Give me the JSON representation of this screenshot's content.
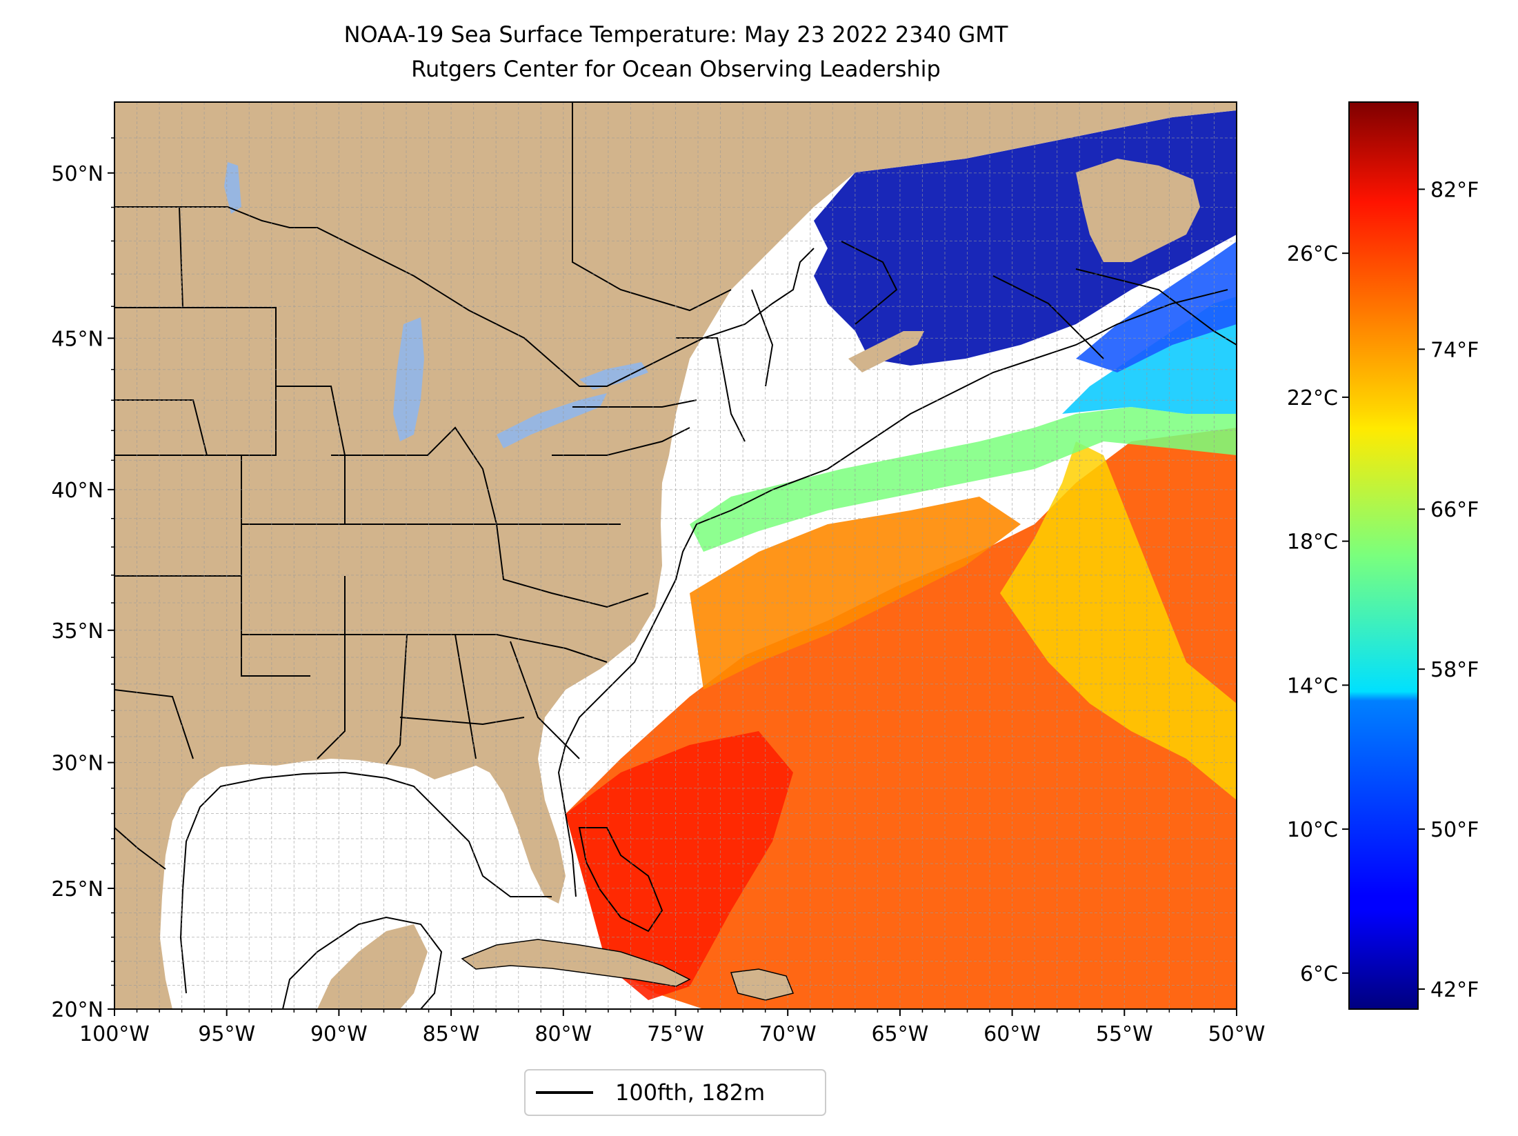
{
  "title": {
    "line1": "NOAA-19 Sea Surface Temperature: May 23 2022 2340 GMT",
    "line2": "Rutgers Center for Ocean Observing Leadership"
  },
  "map": {
    "lon_range": [
      -100,
      -50
    ],
    "lat_range": [
      20,
      52
    ],
    "x_ticks": [
      "100°W",
      "95°W",
      "90°W",
      "85°W",
      "80°W",
      "75°W",
      "70°W",
      "65°W",
      "60°W",
      "55°W",
      "50°W"
    ],
    "y_ticks": [
      {
        "lat": 20,
        "label": "20°N"
      },
      {
        "lat": 25,
        "label": "25°N"
      },
      {
        "lat": 30,
        "label": "30°N"
      },
      {
        "lat": 35,
        "label": "35°N"
      },
      {
        "lat": 40,
        "label": "40°N"
      },
      {
        "lat": 45,
        "label": "45°N"
      },
      {
        "lat": 50,
        "label": "50°N"
      }
    ],
    "grid": true,
    "colors": {
      "land": "#d2b48c",
      "lakes": "#97b6e1",
      "clouds": "#ffffff",
      "contour": "#000000"
    }
  },
  "colorbar": {
    "colormap": "jet",
    "celsius_range": [
      5,
      30.2
    ],
    "celsius_ticks": [
      {
        "value": 6,
        "label": "6°C"
      },
      {
        "value": 10,
        "label": "10°C"
      },
      {
        "value": 14,
        "label": "14°C"
      },
      {
        "value": 18,
        "label": "18°C"
      },
      {
        "value": 22,
        "label": "22°C"
      },
      {
        "value": 26,
        "label": "26°C"
      }
    ],
    "fahrenheit_ticks": [
      {
        "value": 42,
        "label": "42°F"
      },
      {
        "value": 50,
        "label": "50°F"
      },
      {
        "value": 58,
        "label": "58°F"
      },
      {
        "value": 66,
        "label": "66°F"
      },
      {
        "value": 74,
        "label": "74°F"
      },
      {
        "value": 82,
        "label": "82°F"
      }
    ]
  },
  "legend": {
    "entries": [
      {
        "label": "100fth, 182m",
        "color": "#000000"
      }
    ],
    "placement": "bottom"
  }
}
